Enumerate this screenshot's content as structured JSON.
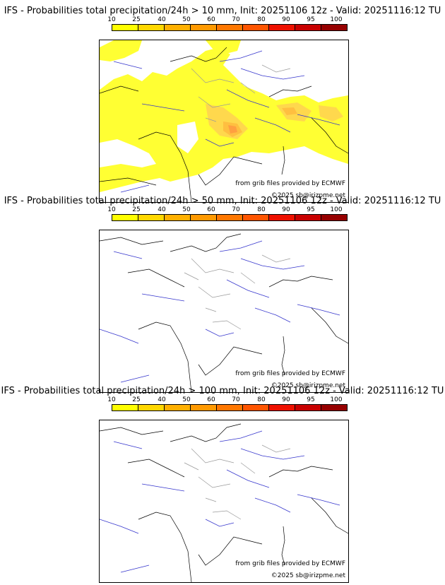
{
  "colorbar": {
    "ticks": [
      "10",
      "25",
      "40",
      "50",
      "60",
      "70",
      "80",
      "90",
      "95",
      "100"
    ],
    "colors": [
      "#ffff00",
      "#ffd700",
      "#ffb000",
      "#ff9900",
      "#ff7700",
      "#ff5500",
      "#ee1100",
      "#c80000",
      "#960000",
      "#640000"
    ]
  },
  "panels": [
    {
      "title": "IFS - Probabilities total precipitation/24h > 10 mm, Init: 20251106 12z - Valid: 20251116:12 TU",
      "credit_source": "from grib files provided by ECMWF",
      "credit_copyright": "©2025 sb@irizpme.net"
    },
    {
      "title": "IFS - Probabilities total precipitation/24h > 50 mm, Init: 20251106 12z - Valid: 20251116:12 TU",
      "credit_source": "from grib files provided by ECMWF",
      "credit_copyright": "©2025 sb@irizpme.net"
    },
    {
      "title": "IFS - Probabilities total precipitation/24h > 100 mm, Init: 20251106 12z - Valid: 20251116:12 TU",
      "credit_source": "from grib files provided by ECMWF",
      "credit_copyright": "©2025 sb@irizpme.net"
    }
  ]
}
